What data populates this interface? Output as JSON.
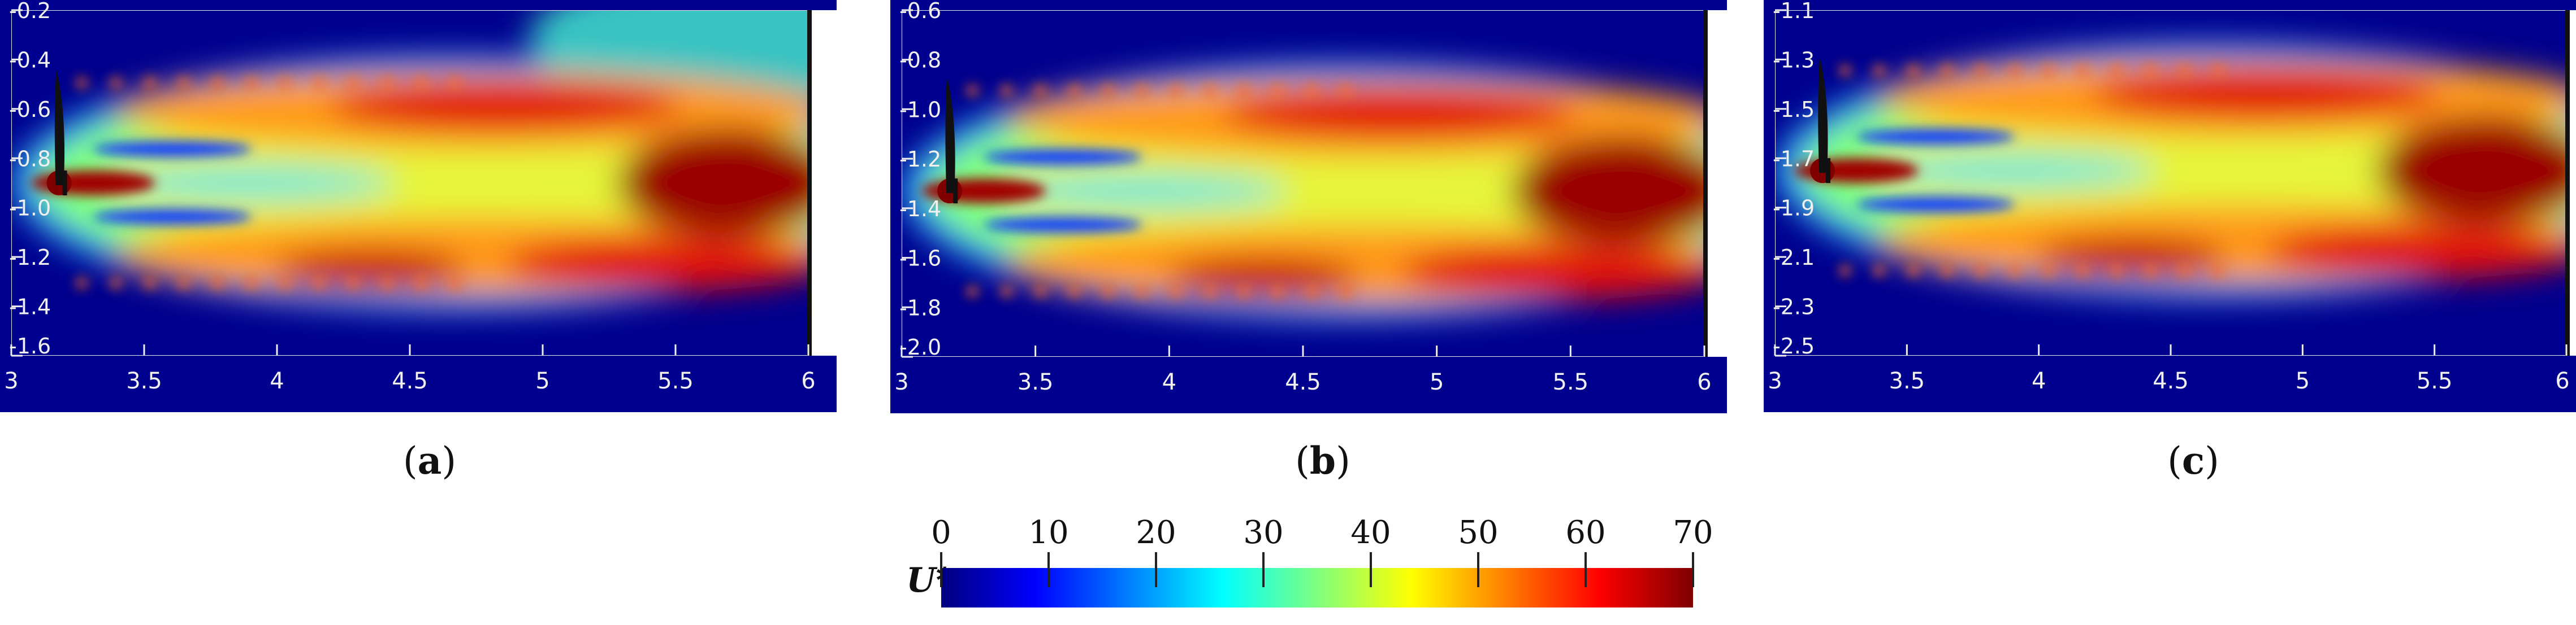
{
  "panels": [
    {
      "id": "a",
      "caption_open": "(",
      "caption_letter": "a",
      "caption_close": ")",
      "x_ticks": [
        "3",
        "3.5",
        "4",
        "4.5",
        "5",
        "5.5",
        "6"
      ],
      "y_ticks": [
        "-0.2",
        "-0.4",
        "-0.6",
        "-0.8",
        "-1.0",
        "-1.2",
        "-1.4",
        "-1.6"
      ],
      "x_range": [
        3,
        6
      ],
      "y_range": [
        -1.6,
        -0.2
      ],
      "rotor_center_y": -0.9
    },
    {
      "id": "b",
      "caption_open": "(",
      "caption_letter": "b",
      "caption_close": ")",
      "x_ticks": [
        "3",
        "3.5",
        "4",
        "4.5",
        "5",
        "5.5",
        "6"
      ],
      "y_ticks": [
        "-0.6",
        "-0.8",
        "-1.0",
        "-1.2",
        "-1.4",
        "-1.6",
        "-1.8",
        "-2.0"
      ],
      "x_range": [
        3,
        6
      ],
      "y_range": [
        -2.0,
        -0.6
      ],
      "rotor_center_y": -1.33
    },
    {
      "id": "c",
      "caption_open": "(",
      "caption_letter": "c",
      "caption_close": ")",
      "x_ticks": [
        "3",
        "3.5",
        "4",
        "4.5",
        "5",
        "5.5",
        "6"
      ],
      "y_ticks": [
        "-1.1",
        "-1.3",
        "-1.5",
        "-1.7",
        "-1.9",
        "-2.1",
        "-2.3",
        "-2.5"
      ],
      "x_range": [
        3,
        6
      ],
      "y_range": [
        -2.5,
        -1.1
      ],
      "rotor_center_y": -1.75
    }
  ],
  "colorbar": {
    "label": "U*",
    "ticks": [
      "0",
      "10",
      "20",
      "30",
      "40",
      "50",
      "60",
      "70"
    ],
    "range": [
      0,
      70
    ],
    "colormap": [
      "#00007f",
      "#0000ff",
      "#007fff",
      "#00ffff",
      "#7fff7f",
      "#ffff00",
      "#ff7f00",
      "#ff0000",
      "#7f0000"
    ]
  }
}
